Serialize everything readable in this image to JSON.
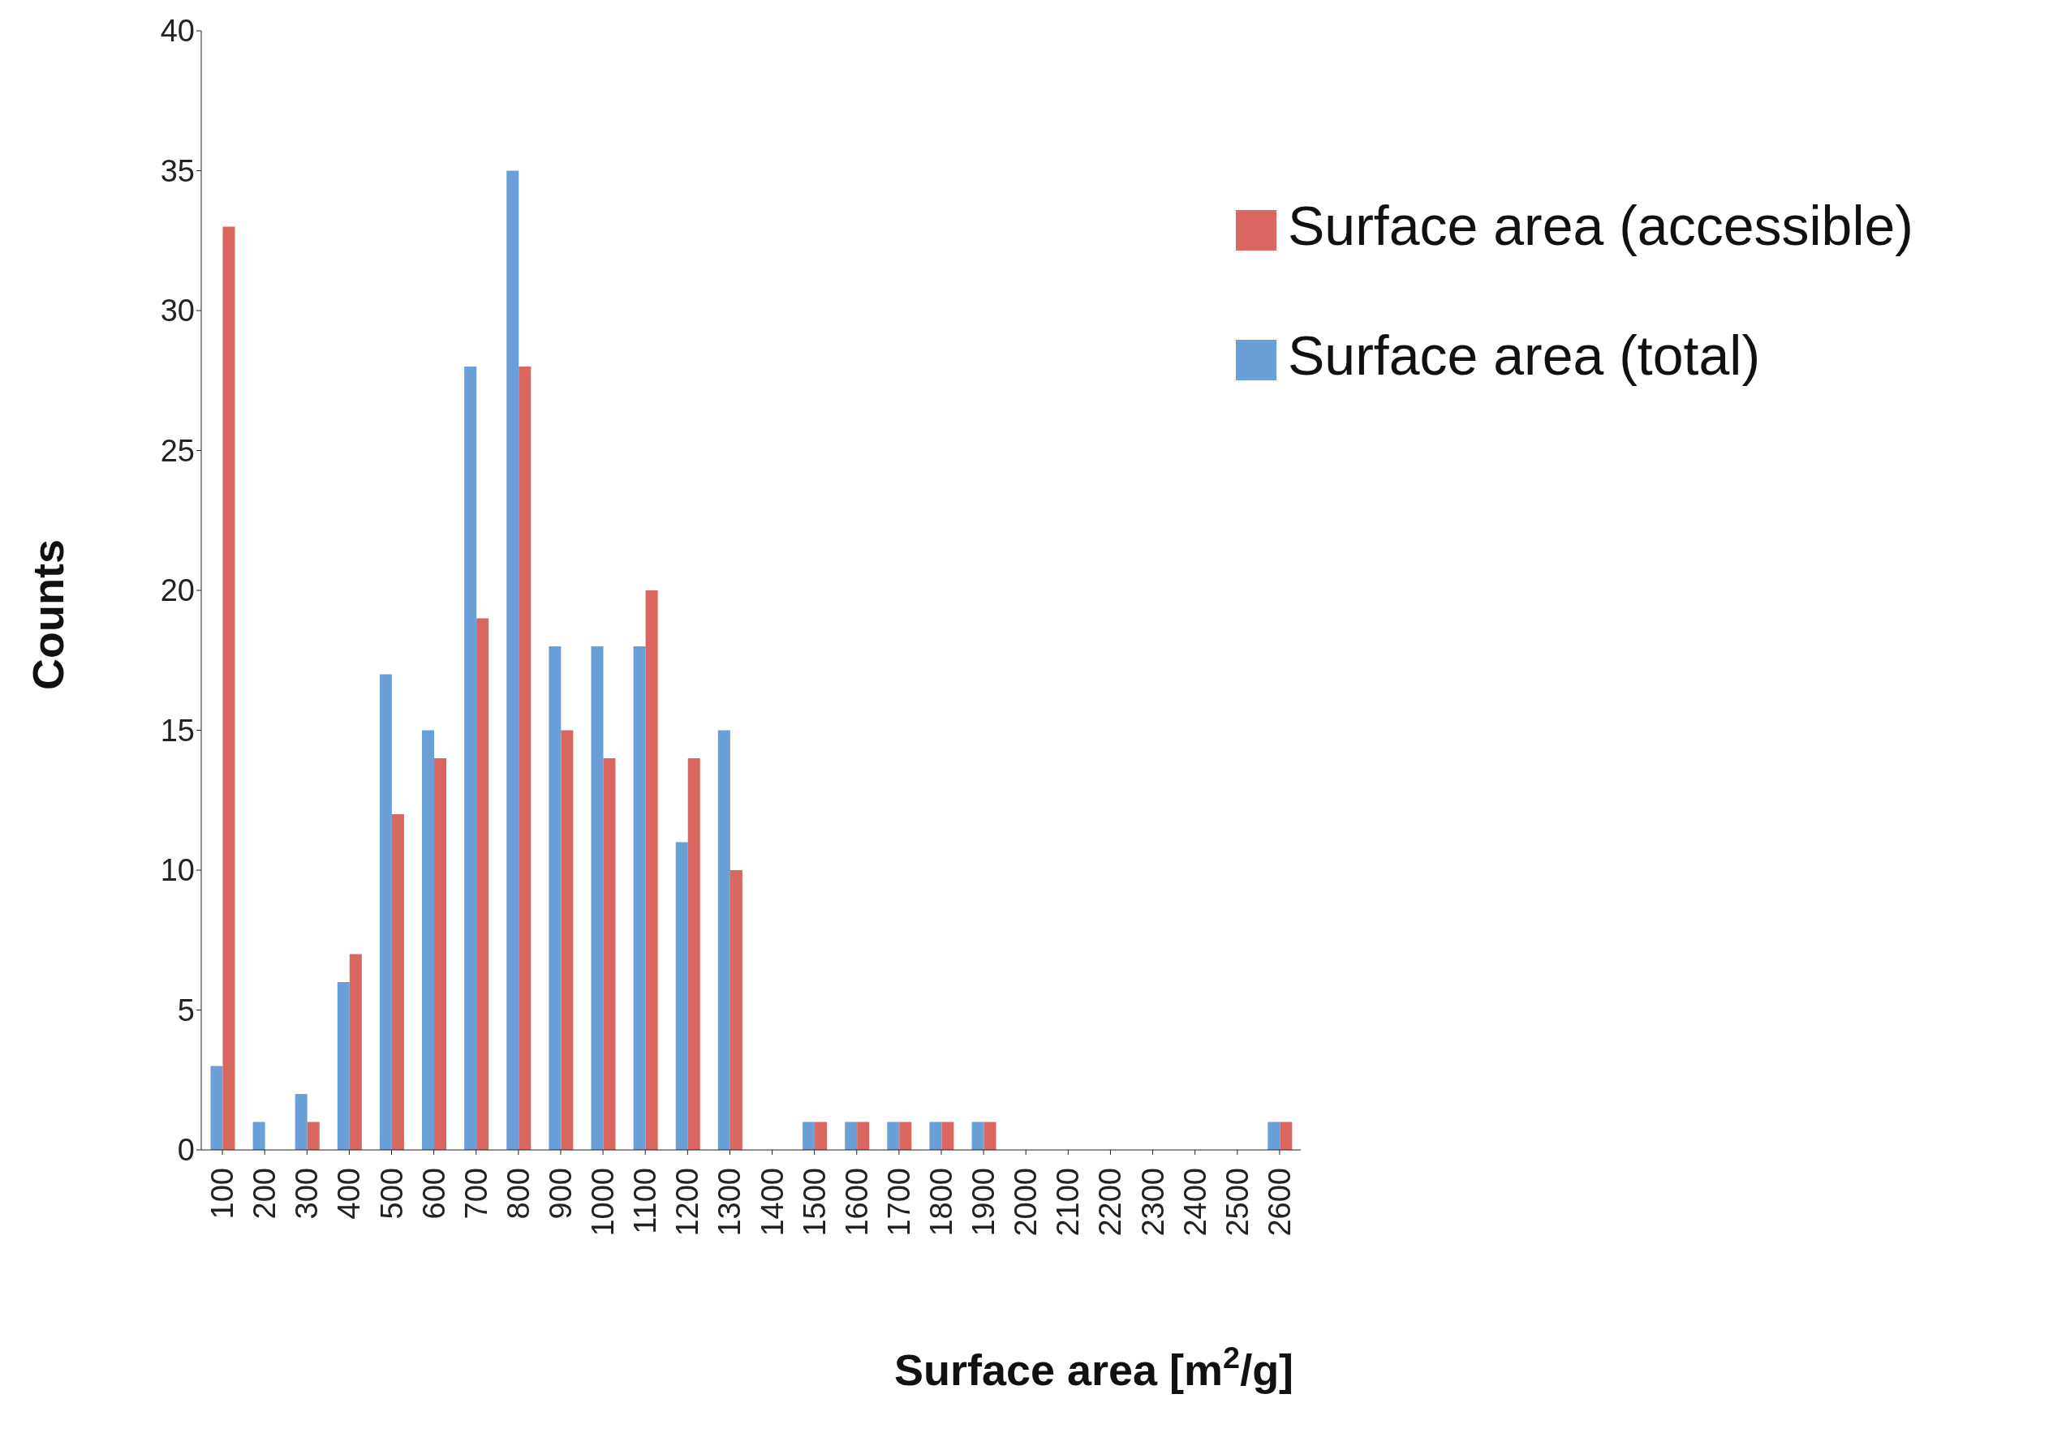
{
  "chart_data": {
    "type": "bar",
    "xlabel": "Surface area [m$^{2}$/g]",
    "ylabel": "Counts",
    "categories": [
      "100",
      "200",
      "300",
      "400",
      "500",
      "600",
      "700",
      "800",
      "900",
      "1000",
      "1100",
      "1200",
      "1300",
      "1400",
      "1500",
      "1600",
      "1700",
      "1800",
      "1900",
      "2000",
      "2100",
      "2200",
      "2300",
      "2400",
      "2500",
      "2600"
    ],
    "series": [
      {
        "name": "Surface area (total)",
        "color": "#6a9fd8",
        "values": [
          3,
          1,
          2,
          6,
          17,
          15,
          28,
          35,
          18,
          18,
          18,
          11,
          15,
          0,
          1,
          1,
          1,
          1,
          1,
          0,
          0,
          0,
          0,
          0,
          0,
          1
        ]
      },
      {
        "name": "Surface area (accessible)",
        "color": "#d9665f",
        "values": [
          33,
          0,
          1,
          7,
          12,
          14,
          19,
          28,
          15,
          14,
          20,
          14,
          10,
          0,
          1,
          1,
          1,
          1,
          1,
          0,
          0,
          0,
          0,
          0,
          0,
          1
        ]
      }
    ],
    "ylim": [
      0,
      40
    ],
    "yticks": [
      0,
      5,
      10,
      15,
      20,
      25,
      30,
      35,
      40
    ],
    "grid": false,
    "legend": "top right"
  }
}
